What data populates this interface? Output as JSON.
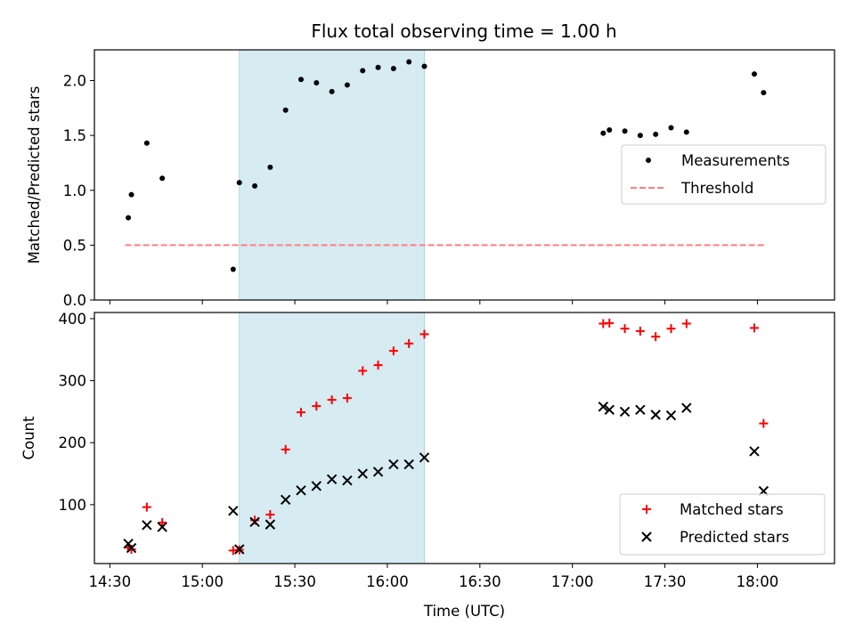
{
  "figure": {
    "title": "Flux total observing time = 1.00 h",
    "xlabel": "Time (UTC)"
  },
  "chart_data": [
    {
      "type": "scatter",
      "title": "Flux total observing time = 1.00 h",
      "ylabel": "Matched/Predicted stars",
      "xlabel": "",
      "x_unit": "UTC time (HH:MM)",
      "xlim": [
        "14:25",
        "18:25"
      ],
      "ylim": [
        0,
        2.28
      ],
      "yticks": [
        0.0,
        0.5,
        1.0,
        1.5,
        2.0
      ],
      "ytick_labels": [
        "0.0",
        "0.5",
        "1.0",
        "1.5",
        "2.0"
      ],
      "highlight_span": {
        "x": [
          "15:12",
          "16:12"
        ],
        "color": "#add8e6"
      },
      "series": [
        {
          "name": "Measurements",
          "marker": "dot",
          "color": "#000000",
          "points": [
            [
              "14:36",
              0.75
            ],
            [
              "14:37",
              0.96
            ],
            [
              "14:42",
              1.43
            ],
            [
              "14:47",
              1.11
            ],
            [
              "15:10",
              0.28
            ],
            [
              "15:12",
              1.07
            ],
            [
              "15:17",
              1.04
            ],
            [
              "15:22",
              1.21
            ],
            [
              "15:27",
              1.73
            ],
            [
              "15:32",
              2.01
            ],
            [
              "15:37",
              1.98
            ],
            [
              "15:42",
              1.9
            ],
            [
              "15:47",
              1.96
            ],
            [
              "15:52",
              2.09
            ],
            [
              "15:57",
              2.12
            ],
            [
              "16:02",
              2.11
            ],
            [
              "16:07",
              2.17
            ],
            [
              "16:12",
              2.13
            ],
            [
              "17:10",
              1.52
            ],
            [
              "17:12",
              1.55
            ],
            [
              "17:17",
              1.54
            ],
            [
              "17:22",
              1.5
            ],
            [
              "17:27",
              1.51
            ],
            [
              "17:32",
              1.57
            ],
            [
              "17:37",
              1.53
            ],
            [
              "17:59",
              2.06
            ],
            [
              "18:02",
              1.89
            ]
          ]
        },
        {
          "name": "Threshold",
          "marker": "dashed-line",
          "color": "#ff7f7f",
          "points": [
            [
              "14:35",
              0.5
            ],
            [
              "18:03",
              0.5
            ]
          ]
        }
      ],
      "legend": {
        "placement": "center-right"
      }
    },
    {
      "type": "scatter",
      "xlabel": "Time (UTC)",
      "ylabel": "Count",
      "x_unit": "UTC time (HH:MM)",
      "xlim": [
        "14:25",
        "18:25"
      ],
      "ylim": [
        5,
        410
      ],
      "xticks": [
        "14:30",
        "15:00",
        "15:30",
        "16:00",
        "16:30",
        "17:00",
        "17:30",
        "18:00"
      ],
      "yticks": [
        100,
        200,
        300,
        400
      ],
      "ytick_labels": [
        "100",
        "200",
        "300",
        "400"
      ],
      "highlight_span": {
        "x": [
          "15:12",
          "16:12"
        ],
        "color": "#add8e6"
      },
      "series": [
        {
          "name": "Matched stars",
          "marker": "plus",
          "color": "#ff0000",
          "points": [
            [
              "14:36",
              31
            ],
            [
              "14:37",
              28
            ],
            [
              "14:42",
              96
            ],
            [
              "14:47",
              71
            ],
            [
              "15:10",
              26
            ],
            [
              "15:12",
              27
            ],
            [
              "15:17",
              75
            ],
            [
              "15:22",
              84
            ],
            [
              "15:27",
              189
            ],
            [
              "15:32",
              249
            ],
            [
              "15:37",
              259
            ],
            [
              "15:42",
              269
            ],
            [
              "15:47",
              272
            ],
            [
              "15:52",
              316
            ],
            [
              "15:57",
              325
            ],
            [
              "16:02",
              348
            ],
            [
              "16:07",
              360
            ],
            [
              "16:12",
              375
            ],
            [
              "17:10",
              392
            ],
            [
              "17:12",
              393
            ],
            [
              "17:17",
              384
            ],
            [
              "17:22",
              380
            ],
            [
              "17:27",
              371
            ],
            [
              "17:32",
              384
            ],
            [
              "17:37",
              392
            ],
            [
              "17:59",
              385
            ],
            [
              "18:02",
              231
            ]
          ]
        },
        {
          "name": "Predicted stars",
          "marker": "x",
          "color": "#000000",
          "points": [
            [
              "14:36",
              37
            ],
            [
              "14:37",
              30
            ],
            [
              "14:42",
              67
            ],
            [
              "14:47",
              64
            ],
            [
              "15:10",
              90
            ],
            [
              "15:12",
              28
            ],
            [
              "15:17",
              72
            ],
            [
              "15:22",
              68
            ],
            [
              "15:27",
              108
            ],
            [
              "15:32",
              123
            ],
            [
              "15:37",
              130
            ],
            [
              "15:42",
              141
            ],
            [
              "15:47",
              139
            ],
            [
              "15:52",
              150
            ],
            [
              "15:57",
              153
            ],
            [
              "16:02",
              165
            ],
            [
              "16:07",
              165
            ],
            [
              "16:12",
              176
            ],
            [
              "17:10",
              258
            ],
            [
              "17:12",
              253
            ],
            [
              "17:17",
              250
            ],
            [
              "17:22",
              253
            ],
            [
              "17:27",
              245
            ],
            [
              "17:32",
              244
            ],
            [
              "17:37",
              256
            ],
            [
              "17:59",
              186
            ],
            [
              "18:02",
              122
            ]
          ]
        }
      ],
      "legend": {
        "placement": "lower-right"
      }
    }
  ]
}
